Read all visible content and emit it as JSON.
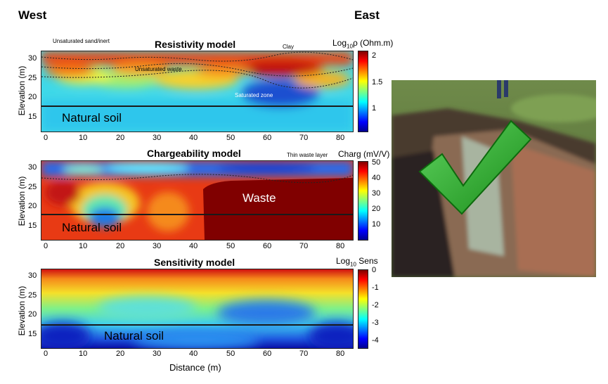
{
  "header": {
    "west": "West",
    "east": "East"
  },
  "panels": [
    {
      "title": "Resistivity model",
      "ylabel": "Elevation (m)",
      "yticks": [
        "30",
        "25",
        "20",
        "15"
      ],
      "colorbar": {
        "title_prefix": "Log",
        "title_sub": "10",
        "title_suffix": "ρ (Ohm.m)",
        "ticks": [
          "2",
          "1.5",
          "1"
        ]
      },
      "annotations": {
        "natural_soil": "Natural soil",
        "unsat_sand": "Unsaturated sand/inert",
        "clay": "Clay",
        "unsat_waste": "Unsaturated waste",
        "sat_zone": "Saturated zone"
      }
    },
    {
      "title": "Chargeability model",
      "ylabel": "Elevation (m)",
      "yticks": [
        "30",
        "25",
        "20",
        "15"
      ],
      "colorbar": {
        "title_prefix": "Charg (mV/V)",
        "title_sub": "",
        "title_suffix": "",
        "ticks": [
          "50",
          "40",
          "30",
          "20",
          "10"
        ]
      },
      "annotations": {
        "natural_soil": "Natural soil",
        "waste": "Waste",
        "thin_waste": "Thin waste layer"
      }
    },
    {
      "title": "Sensitivity model",
      "ylabel": "Elevation (m)",
      "yticks": [
        "30",
        "25",
        "20",
        "15"
      ],
      "colorbar": {
        "title_prefix": "Log",
        "title_sub": "10",
        "title_suffix": " Sens",
        "ticks": [
          "0",
          "-1",
          "-2",
          "-3",
          "-4"
        ]
      },
      "annotations": {
        "natural_soil": "Natural soil"
      }
    }
  ],
  "xaxis": {
    "ticks": [
      "0",
      "10",
      "20",
      "30",
      "40",
      "50",
      "60",
      "70",
      "80"
    ],
    "label": "Distance (m)"
  },
  "photo": {
    "icon": "check-mark-icon",
    "check_color": "#1a9c1a"
  },
  "colors": {
    "jet_low": "#00008f",
    "jet_mid": "#00ffff",
    "jet_high": "#800000"
  }
}
